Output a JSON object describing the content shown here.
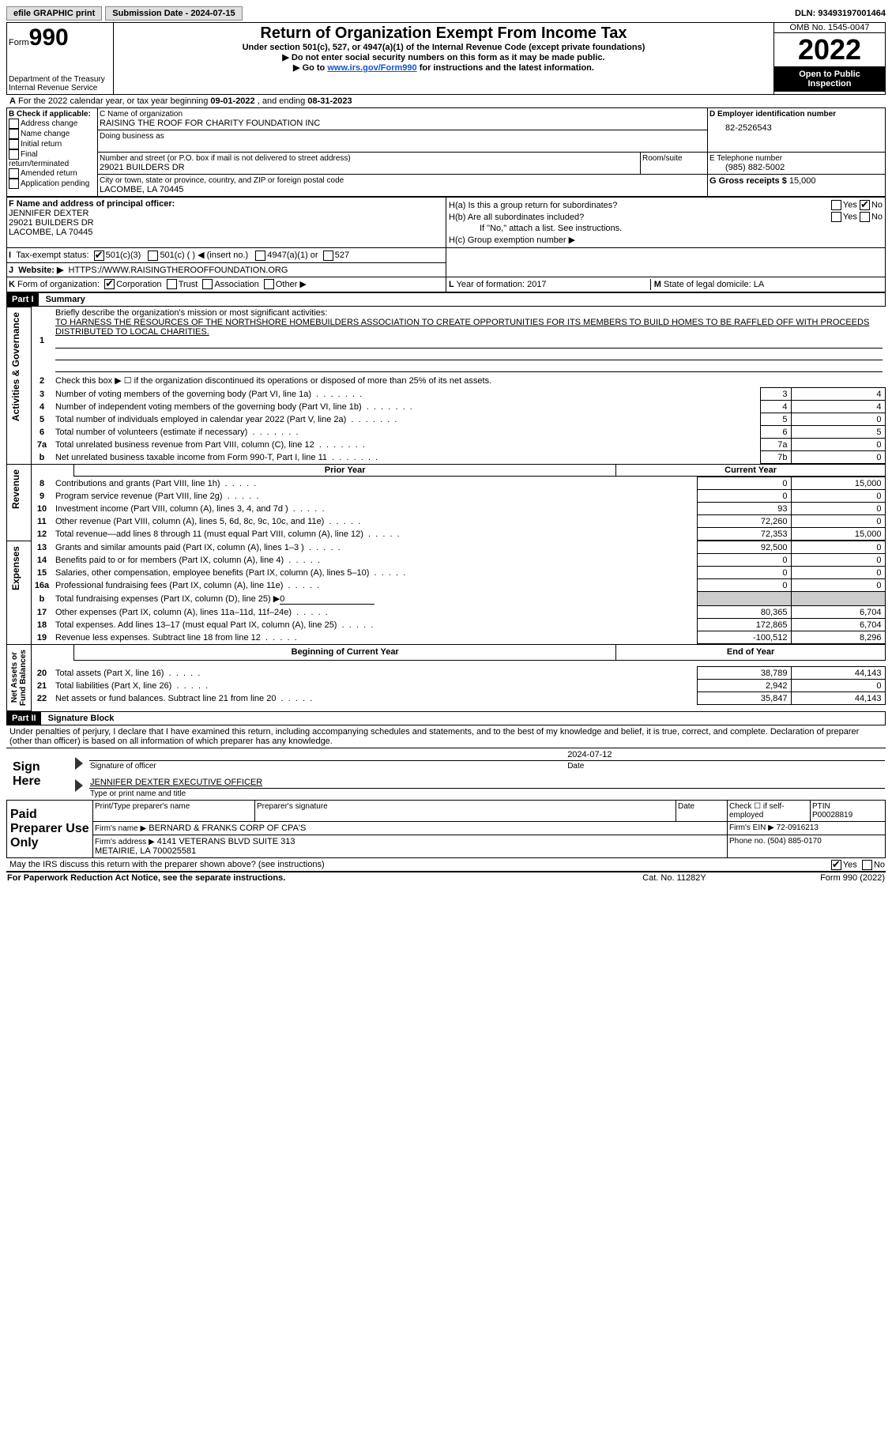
{
  "topbar": {
    "efile": "efile GRAPHIC print",
    "submission": "Submission Date - 2024-07-15",
    "dln": "DLN: 93493197001464"
  },
  "header": {
    "form_prefix": "Form",
    "form_number": "990",
    "title": "Return of Organization Exempt From Income Tax",
    "subtitle": "Under section 501(c), 527, or 4947(a)(1) of the Internal Revenue Code (except private foundations)",
    "note1": "▶ Do not enter social security numbers on this form as it may be made public.",
    "note2_prefix": "▶ Go to ",
    "note2_link": "www.irs.gov/Form990",
    "note2_suffix": " for instructions and the latest information.",
    "dept": "Department of the Treasury\nInternal Revenue Service",
    "omb": "OMB No. 1545-0047",
    "year": "2022",
    "open": "Open to Public Inspection"
  },
  "line_a": {
    "text": "For the 2022 calendar year, or tax year beginning ",
    "begin": "09-01-2022",
    "mid": " , and ending ",
    "end": "08-31-2023"
  },
  "box_b": {
    "label": "B Check if applicable:",
    "items": [
      "Address change",
      "Name change",
      "Initial return",
      "Final return/terminated",
      "Amended return",
      "Application pending"
    ]
  },
  "box_c": {
    "label": "C Name of organization",
    "name": "RAISING THE ROOF FOR CHARITY FOUNDATION INC",
    "dba": "Doing business as",
    "addr_label": "Number and street (or P.O. box if mail is not delivered to street address)",
    "addr": "29021 BUILDERS DR",
    "room": "Room/suite",
    "city_label": "City or town, state or province, country, and ZIP or foreign postal code",
    "city": "LACOMBE, LA  70445"
  },
  "box_d": {
    "label": "D Employer identification number",
    "value": "82-2526543"
  },
  "box_e": {
    "label": "E Telephone number",
    "value": "(985) 882-5002"
  },
  "box_g": {
    "label": "G Gross receipts $ ",
    "value": "15,000"
  },
  "box_f": {
    "label": "F Name and address of principal officer:",
    "name": "JENNIFER DEXTER",
    "addr1": "29021 BUILDERS DR",
    "addr2": "LACOMBE, LA  70445"
  },
  "box_h": {
    "a": "H(a)  Is this a group return for subordinates?",
    "b": "H(b)  Are all subordinates included?",
    "note": "If \"No,\" attach a list. See instructions.",
    "c": "H(c)  Group exemption number ▶",
    "yes": "Yes",
    "no": "No"
  },
  "box_i": {
    "label": "I",
    "text": "Tax-exempt status:",
    "c3": "501(c)(3)",
    "c": "501(c) (  ) ◀ (insert no.)",
    "a": "4947(a)(1) or",
    "s": "527"
  },
  "box_j": {
    "label": "J",
    "text": "Website: ▶",
    "url": "HTTPS://WWW.RAISINGTHEROOFFOUNDATION.ORG"
  },
  "box_k": {
    "label": "K",
    "text": "Form of organization:",
    "corp": "Corporation",
    "trust": "Trust",
    "assoc": "Association",
    "other": "Other ▶"
  },
  "box_l": {
    "label": "L",
    "text": "Year of formation: ",
    "value": "2017"
  },
  "box_m": {
    "label": "M",
    "text": "State of legal domicile: ",
    "value": "LA"
  },
  "part1": {
    "header": "Part I",
    "title": "Summary",
    "l1_label": "Briefly describe the organization's mission or most significant activities:",
    "l1_text": "TO HARNESS THE RESOURCES OF THE NORTHSHORE HOMEBUILDERS ASSOCIATION TO CREATE OPPORTUNITIES FOR ITS MEMBERS TO BUILD HOMES TO BE RAFFLED OFF WITH PROCEEDS DISTRIBUTED TO LOCAL CHARITIES.",
    "l2": "Check this box ▶ ☐  if the organization discontinued its operations or disposed of more than 25% of its net assets.",
    "lines": [
      {
        "n": "3",
        "t": "Number of voting members of the governing body (Part VI, line 1a)",
        "box": "3",
        "v": "4"
      },
      {
        "n": "4",
        "t": "Number of independent voting members of the governing body (Part VI, line 1b)",
        "box": "4",
        "v": "4"
      },
      {
        "n": "5",
        "t": "Total number of individuals employed in calendar year 2022 (Part V, line 2a)",
        "box": "5",
        "v": "0"
      },
      {
        "n": "6",
        "t": "Total number of volunteers (estimate if necessary)",
        "box": "6",
        "v": "5"
      },
      {
        "n": "7a",
        "t": "Total unrelated business revenue from Part VIII, column (C), line 12",
        "box": "7a",
        "v": "0"
      },
      {
        "n": "b",
        "t": "Net unrelated business taxable income from Form 990-T, Part I, line 11",
        "box": "7b",
        "v": "0"
      }
    ],
    "prior": "Prior Year",
    "current": "Current Year",
    "rev": [
      {
        "n": "8",
        "t": "Contributions and grants (Part VIII, line 1h)",
        "p": "0",
        "c": "15,000"
      },
      {
        "n": "9",
        "t": "Program service revenue (Part VIII, line 2g)",
        "p": "0",
        "c": "0"
      },
      {
        "n": "10",
        "t": "Investment income (Part VIII, column (A), lines 3, 4, and 7d )",
        "p": "93",
        "c": "0"
      },
      {
        "n": "11",
        "t": "Other revenue (Part VIII, column (A), lines 5, 6d, 8c, 9c, 10c, and 11e)",
        "p": "72,260",
        "c": "0"
      },
      {
        "n": "12",
        "t": "Total revenue—add lines 8 through 11 (must equal Part VIII, column (A), line 12)",
        "p": "72,353",
        "c": "15,000"
      }
    ],
    "exp": [
      {
        "n": "13",
        "t": "Grants and similar amounts paid (Part IX, column (A), lines 1–3 )",
        "p": "92,500",
        "c": "0"
      },
      {
        "n": "14",
        "t": "Benefits paid to or for members (Part IX, column (A), line 4)",
        "p": "0",
        "c": "0"
      },
      {
        "n": "15",
        "t": "Salaries, other compensation, employee benefits (Part IX, column (A), lines 5–10)",
        "p": "0",
        "c": "0"
      },
      {
        "n": "16a",
        "t": "Professional fundraising fees (Part IX, column (A), line 11e)",
        "p": "0",
        "c": "0"
      },
      {
        "n": "b",
        "t": "Total fundraising expenses (Part IX, column (D), line 25) ▶",
        "v": "0",
        "shade": true
      },
      {
        "n": "17",
        "t": "Other expenses (Part IX, column (A), lines 11a–11d, 11f–24e)",
        "p": "80,365",
        "c": "6,704"
      },
      {
        "n": "18",
        "t": "Total expenses. Add lines 13–17 (must equal Part IX, column (A), line 25)",
        "p": "172,865",
        "c": "6,704"
      },
      {
        "n": "19",
        "t": "Revenue less expenses. Subtract line 18 from line 12",
        "p": "-100,512",
        "c": "8,296"
      }
    ],
    "boy": "Beginning of Current Year",
    "eoy": "End of Year",
    "net": [
      {
        "n": "20",
        "t": "Total assets (Part X, line 16)",
        "p": "38,789",
        "c": "44,143"
      },
      {
        "n": "21",
        "t": "Total liabilities (Part X, line 26)",
        "p": "2,942",
        "c": "0"
      },
      {
        "n": "22",
        "t": "Net assets or fund balances. Subtract line 21 from line 20",
        "p": "35,847",
        "c": "44,143"
      }
    ],
    "sections": {
      "ag": "Activities & Governance",
      "rev": "Revenue",
      "exp": "Expenses",
      "net": "Net Assets or\nFund Balances"
    }
  },
  "part2": {
    "header": "Part II",
    "title": "Signature Block",
    "penalties": "Under penalties of perjury, I declare that I have examined this return, including accompanying schedules and statements, and to the best of my knowledge and belief, it is true, correct, and complete. Declaration of preparer (other than officer) is based on all information of which preparer has any knowledge.",
    "sign_here": "Sign Here",
    "sig_officer": "Signature of officer",
    "date": "Date",
    "sig_date": "2024-07-12",
    "officer_name": "JENNIFER DEXTER  EXECUTIVE OFFICER",
    "type_name": "Type or print name and title",
    "paid": "Paid Preparer Use Only",
    "print_name": "Print/Type preparer's name",
    "prep_sig": "Preparer's signature",
    "check_self": "Check ☐ if self-employed",
    "ptin_label": "PTIN",
    "ptin": "P00028819",
    "firm_name_label": "Firm's name    ▶",
    "firm_name": "BERNARD & FRANKS CORP OF CPA'S",
    "firm_ein_label": "Firm's EIN ▶",
    "firm_ein": "72-0916213",
    "firm_addr_label": "Firm's address ▶",
    "firm_addr": "4141 VETERANS BLVD SUITE 313\nMETAIRIE, LA  700025581",
    "phone_label": "Phone no.",
    "phone": "(504) 885-0170",
    "discuss": "May the IRS discuss this return with the preparer shown above? (see instructions)",
    "yes": "Yes",
    "no": "No"
  },
  "footer": {
    "pra": "For Paperwork Reduction Act Notice, see the separate instructions.",
    "cat": "Cat. No. 11282Y",
    "form": "Form 990 (2022)"
  }
}
